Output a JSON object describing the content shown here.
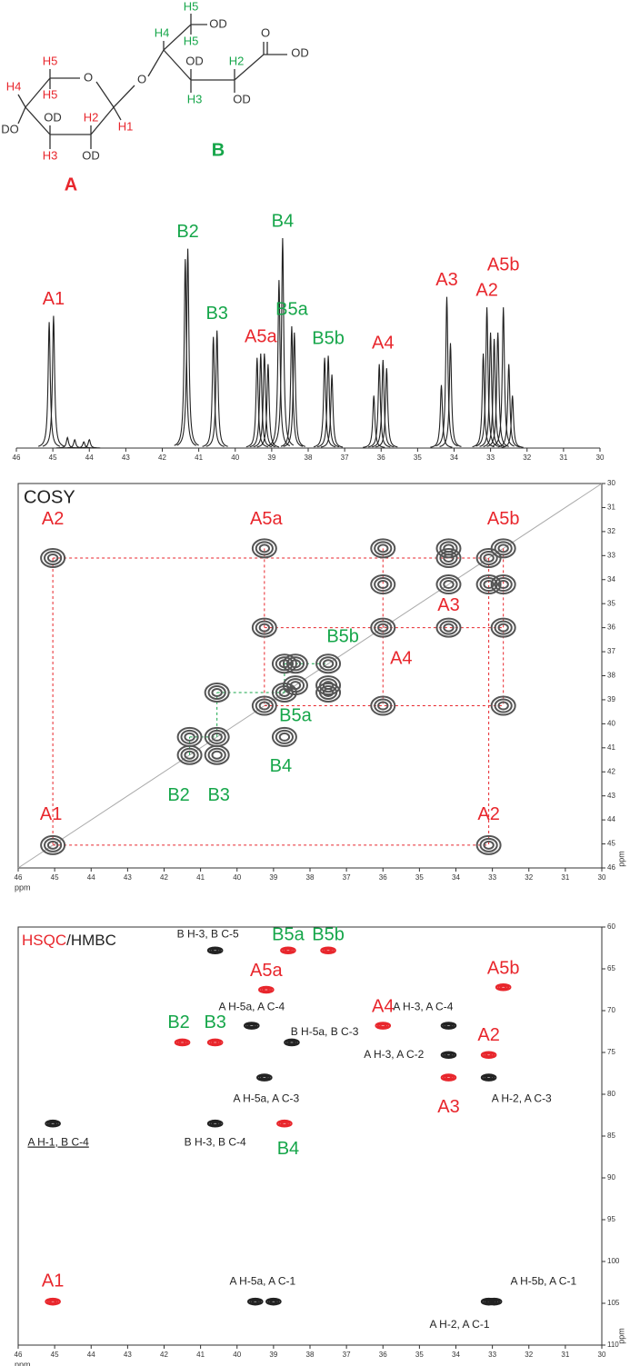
{
  "structure": {
    "labels": [
      "H5",
      "H4",
      "H5",
      "DO",
      "OD",
      "H2",
      "H1",
      "H3",
      "OD",
      "O",
      "O",
      "H5",
      "OD",
      "H4",
      "H5",
      "OD",
      "H2",
      "O",
      "OD",
      "H3",
      "OD"
    ],
    "ring_names": [
      "A",
      "B"
    ]
  },
  "chart_data": [
    {
      "type": "line",
      "xlim": [
        46,
        30
      ],
      "ylim": [
        0,
        100
      ],
      "xticks": [
        46,
        45,
        44,
        43,
        42,
        41,
        40,
        39,
        38,
        37,
        36,
        35,
        34,
        33,
        32,
        31,
        30
      ],
      "series": [
        {
          "name": "A1",
          "color": "#e8262c",
          "x": [
            45.1,
            44.98
          ],
          "values": [
            60,
            63
          ]
        },
        {
          "color": "#222222",
          "x": [
            44.6,
            44.4,
            44.15,
            44.0
          ],
          "values": [
            5,
            4,
            3,
            4
          ]
        },
        {
          "name": "B2",
          "color": "#16a64a",
          "x": [
            41.37,
            41.3
          ],
          "values": [
            90,
            95
          ]
        },
        {
          "name": "B3",
          "color": "#16a64a",
          "x": [
            40.6,
            40.5
          ],
          "values": [
            53,
            56
          ]
        },
        {
          "name": "A5a",
          "color": "#e8262c",
          "x": [
            39.4,
            39.3,
            39.2,
            39.1
          ],
          "values": [
            43,
            45,
            45,
            40
          ]
        },
        {
          "name": "B4",
          "color": "#16a64a",
          "x": [
            38.8,
            38.7
          ],
          "values": [
            80,
            100
          ]
        },
        {
          "name": "B5a",
          "color": "#16a64a",
          "x": [
            38.45,
            38.38
          ],
          "values": [
            58,
            55
          ]
        },
        {
          "name": "B5b",
          "color": "#16a64a",
          "x": [
            37.55,
            37.45,
            37.35
          ],
          "values": [
            43,
            44,
            35
          ]
        },
        {
          "name": "A4",
          "color": "#e8262c",
          "x": [
            36.2,
            36.05,
            35.95,
            35.85
          ],
          "values": [
            25,
            40,
            42,
            38
          ]
        },
        {
          "name": "A3",
          "color": "#e8262c",
          "x": [
            34.35,
            34.2,
            34.1
          ],
          "values": [
            30,
            72,
            50
          ]
        },
        {
          "name": "A2",
          "color": "#e8262c",
          "x": [
            33.2,
            33.1,
            33.0
          ],
          "values": [
            45,
            67,
            55
          ]
        },
        {
          "name": "A5b",
          "color": "#e8262c",
          "x": [
            32.9,
            32.8,
            32.65,
            32.5,
            32.4
          ],
          "values": [
            52,
            55,
            67,
            40,
            25
          ]
        }
      ]
    },
    {
      "type": "contour",
      "title": "COSY",
      "diagonal": true,
      "xlabel": "ppm",
      "ylabel": "ppm",
      "xlim": [
        46,
        30
      ],
      "ylim": [
        46,
        30
      ],
      "xticks": [
        46,
        45,
        44,
        43,
        42,
        41,
        40,
        39,
        38,
        37,
        36,
        35,
        34,
        33,
        32,
        31,
        30
      ],
      "yticks": [
        30,
        31,
        32,
        33,
        34,
        35,
        36,
        37,
        38,
        39,
        40,
        41,
        42,
        43,
        44,
        45,
        46
      ],
      "guides": [
        {
          "color": "#e8262c",
          "x": [
            45.05,
            45.05
          ],
          "values": [
            33.1,
            45.05
          ]
        },
        {
          "color": "#e8262c",
          "x": [
            45.05,
            33.1
          ],
          "values": [
            33.1,
            33.1
          ]
        },
        {
          "color": "#e8262c",
          "x": [
            45.05,
            33.1
          ],
          "values": [
            45.05,
            45.05
          ]
        },
        {
          "color": "#e8262c",
          "x": [
            33.1,
            33.1
          ],
          "values": [
            33.1,
            45.05
          ]
        },
        {
          "color": "#e8262c",
          "x": [
            39.25,
            39.25
          ],
          "values": [
            32.7,
            39.25
          ]
        },
        {
          "color": "#e8262c",
          "x": [
            36.0,
            36.0
          ],
          "values": [
            32.7,
            39.25
          ]
        },
        {
          "color": "#e8262c",
          "x": [
            39.25,
            32.7
          ],
          "values": [
            36.0,
            36.0
          ]
        },
        {
          "color": "#e8262c",
          "x": [
            39.25,
            32.7
          ],
          "values": [
            39.25,
            39.25
          ]
        },
        {
          "color": "#e8262c",
          "x": [
            32.7,
            32.7
          ],
          "values": [
            32.7,
            39.25
          ]
        },
        {
          "color": "#16a64a",
          "x": [
            41.3,
            41.3
          ],
          "values": [
            41.3,
            40.55
          ]
        },
        {
          "color": "#16a64a",
          "x": [
            41.3,
            40.55
          ],
          "values": [
            40.55,
            40.55
          ]
        },
        {
          "color": "#16a64a",
          "x": [
            40.55,
            40.55
          ],
          "values": [
            40.55,
            38.7
          ]
        },
        {
          "color": "#16a64a",
          "x": [
            40.55,
            38.7
          ],
          "values": [
            38.7,
            38.7
          ]
        },
        {
          "color": "#16a64a",
          "x": [
            38.7,
            38.7
          ],
          "values": [
            38.7,
            37.5
          ]
        },
        {
          "color": "#16a64a",
          "x": [
            38.7,
            37.5
          ],
          "values": [
            37.5,
            37.5
          ]
        }
      ],
      "series": [
        {
          "color": "#555555",
          "x": [
            45.05,
            41.3,
            40.55,
            39.25,
            38.7,
            38.4,
            37.5,
            36.0,
            34.2,
            33.1,
            32.7,
            45.05,
            33.1,
            39.25,
            32.7,
            36.0,
            32.7,
            36.0,
            39.25,
            34.2,
            36.0,
            33.1,
            34.2,
            34.2,
            32.7,
            41.3,
            40.55,
            40.55,
            38.7,
            38.7,
            37.5,
            38.4,
            37.5
          ],
          "values": [
            45.05,
            41.3,
            40.55,
            39.25,
            38.7,
            38.4,
            37.5,
            36.0,
            34.2,
            33.1,
            32.7,
            33.1,
            45.05,
            32.7,
            39.25,
            32.7,
            36.0,
            39.25,
            36.0,
            36.0,
            34.2,
            34.2,
            33.1,
            32.7,
            34.2,
            40.55,
            41.3,
            38.7,
            40.55,
            37.5,
            38.7,
            37.5,
            38.4
          ]
        }
      ],
      "annotations": [
        {
          "text": "A2",
          "x": 45.05,
          "y": 31.5,
          "color": "#e8262c"
        },
        {
          "text": "A5a",
          "x": 39.2,
          "y": 31.5,
          "color": "#e8262c"
        },
        {
          "text": "A5b",
          "x": 32.7,
          "y": 31.5,
          "color": "#e8262c"
        },
        {
          "text": "A3",
          "x": 34.2,
          "y": 35.1,
          "color": "#e8262c"
        },
        {
          "text": "B5b",
          "x": 37.1,
          "y": 36.4,
          "color": "#16a64a"
        },
        {
          "text": "A4",
          "x": 35.5,
          "y": 37.3,
          "color": "#e8262c"
        },
        {
          "text": "B5a",
          "x": 38.4,
          "y": 39.7,
          "color": "#16a64a"
        },
        {
          "text": "B4",
          "x": 38.8,
          "y": 41.8,
          "color": "#16a64a"
        },
        {
          "text": "B2",
          "x": 41.6,
          "y": 43.0,
          "color": "#16a64a"
        },
        {
          "text": "B3",
          "x": 40.5,
          "y": 43.0,
          "color": "#16a64a"
        },
        {
          "text": "A1",
          "x": 45.1,
          "y": 43.8,
          "color": "#e8262c"
        },
        {
          "text": "A2",
          "x": 33.1,
          "y": 43.8,
          "color": "#e8262c"
        }
      ]
    },
    {
      "type": "contour",
      "title_parts": [
        {
          "text": "HSQC",
          "color": "#e8262c"
        },
        {
          "text": "/HMBC",
          "color": "#222222"
        }
      ],
      "xlabel": "ppm",
      "ylabel": "ppm",
      "xlim": [
        46,
        30
      ],
      "ylim": [
        110,
        60
      ],
      "xticks": [
        46,
        45,
        44,
        43,
        42,
        41,
        40,
        39,
        38,
        37,
        36,
        35,
        34,
        33,
        32,
        31,
        30
      ],
      "yticks": [
        60,
        65,
        70,
        75,
        80,
        85,
        90,
        95,
        100,
        105,
        110
      ],
      "series": [
        {
          "color": "#e8262c",
          "x": [
            45.05,
            41.5,
            40.6,
            39.2,
            38.6,
            37.5,
            38.7,
            36.0,
            34.2,
            33.1,
            32.7
          ],
          "values": [
            104.8,
            73.8,
            73.8,
            67.5,
            62.8,
            62.8,
            83.5,
            71.8,
            78.0,
            75.3,
            67.2
          ]
        },
        {
          "color": "#222222",
          "x": [
            45.05,
            40.6,
            40.6,
            39.6,
            38.5,
            39.25,
            34.2,
            34.2,
            33.1,
            33.1,
            32.95,
            39.5,
            39.0
          ],
          "values": [
            83.5,
            83.5,
            62.8,
            71.8,
            73.8,
            78.0,
            71.8,
            75.3,
            78.0,
            104.8,
            104.8,
            104.8,
            104.8
          ]
        }
      ],
      "annotations": [
        {
          "text": "B5a",
          "x": 38.6,
          "y": 61.0,
          "color": "#16a64a"
        },
        {
          "text": "B5b",
          "x": 37.5,
          "y": 61.0,
          "color": "#16a64a"
        },
        {
          "text": "A5a",
          "x": 39.2,
          "y": 65.3,
          "color": "#e8262c"
        },
        {
          "text": "A4",
          "x": 36.0,
          "y": 69.6,
          "color": "#e8262c"
        },
        {
          "text": "A5b",
          "x": 32.7,
          "y": 65.0,
          "color": "#e8262c"
        },
        {
          "text": "B2",
          "x": 41.6,
          "y": 71.5,
          "color": "#16a64a"
        },
        {
          "text": "B3",
          "x": 40.6,
          "y": 71.5,
          "color": "#16a64a"
        },
        {
          "text": "A2",
          "x": 33.1,
          "y": 73.0,
          "color": "#e8262c"
        },
        {
          "text": "A3",
          "x": 34.2,
          "y": 81.6,
          "color": "#e8262c"
        },
        {
          "text": "B4",
          "x": 38.6,
          "y": 86.6,
          "color": "#16a64a"
        },
        {
          "text": "A1",
          "x": 45.05,
          "y": 102.4,
          "color": "#e8262c"
        },
        {
          "text": "B H-3, B C-5",
          "x": 40.8,
          "y": 60.9,
          "color": "#222222"
        },
        {
          "text": "A H-5a, A C-4",
          "x": 39.6,
          "y": 69.6,
          "color": "#222222"
        },
        {
          "text": "B H-5a, B C-3",
          "x": 37.6,
          "y": 72.6,
          "color": "#222222"
        },
        {
          "text": "A H-5a, A C-3",
          "x": 39.2,
          "y": 80.6,
          "color": "#222222"
        },
        {
          "text": "B H-3, B C-4",
          "x": 40.6,
          "y": 85.8,
          "color": "#222222"
        },
        {
          "text": "A H-1, B C-4",
          "x": 44.9,
          "y": 85.8,
          "color": "#222222",
          "underline": true
        },
        {
          "text": "A H-3, A C-4",
          "x": 34.9,
          "y": 69.6,
          "color": "#222222"
        },
        {
          "text": "A H-3, A C-2",
          "x": 35.7,
          "y": 75.3,
          "color": "#222222"
        },
        {
          "text": "A H-2, A C-3",
          "x": 32.2,
          "y": 80.6,
          "color": "#222222"
        },
        {
          "text": "A H-5a, A C-1",
          "x": 39.3,
          "y": 102.4,
          "color": "#222222"
        },
        {
          "text": "A H-5b, A C-1",
          "x": 31.6,
          "y": 102.4,
          "color": "#222222"
        },
        {
          "text": "A H-2, A C-1",
          "x": 33.9,
          "y": 107.6,
          "color": "#222222"
        }
      ]
    }
  ]
}
